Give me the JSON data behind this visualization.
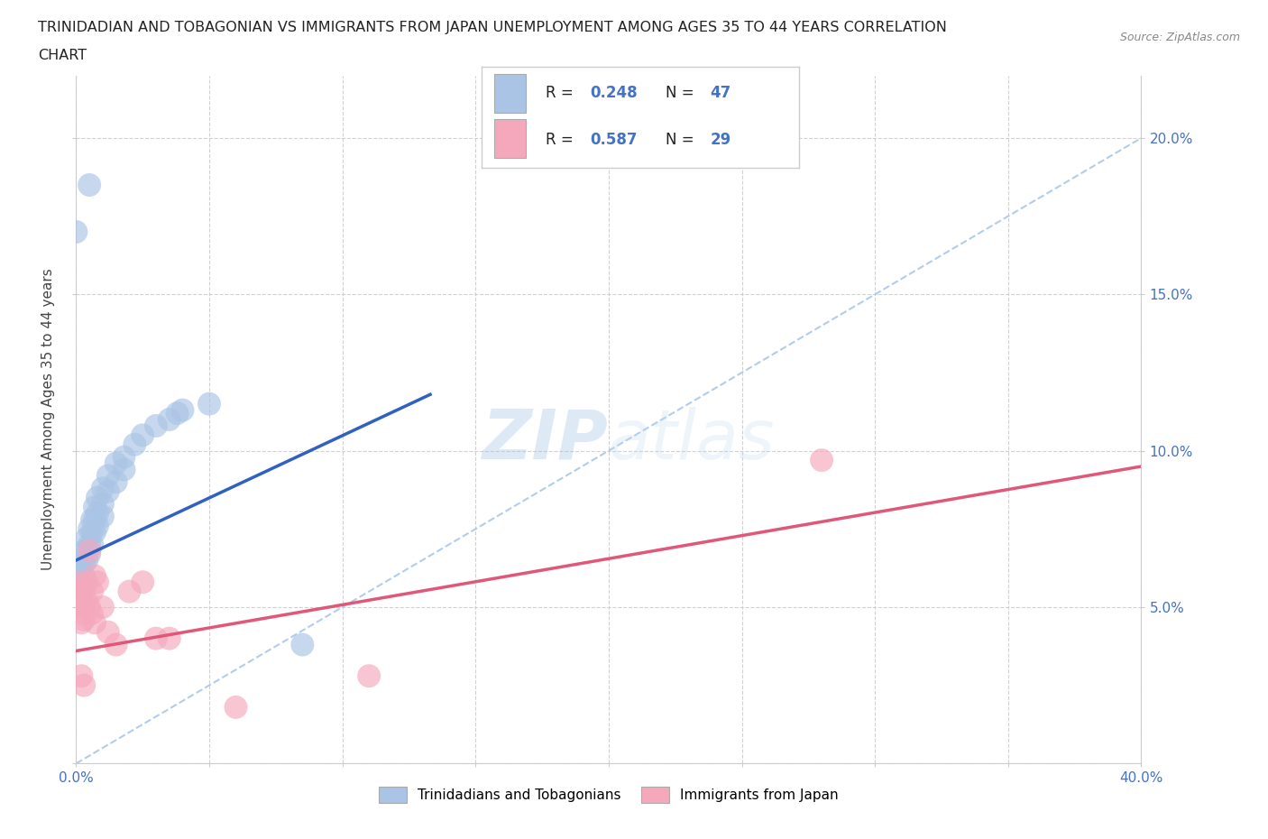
{
  "title_line1": "TRINIDADIAN AND TOBAGONIAN VS IMMIGRANTS FROM JAPAN UNEMPLOYMENT AMONG AGES 35 TO 44 YEARS CORRELATION",
  "title_line2": "CHART",
  "source_text": "Source: ZipAtlas.com",
  "ylabel": "Unemployment Among Ages 35 to 44 years",
  "xlim": [
    0.0,
    0.4
  ],
  "ylim": [
    0.0,
    0.22
  ],
  "xticks": [
    0.0,
    0.05,
    0.1,
    0.15,
    0.2,
    0.25,
    0.3,
    0.35,
    0.4
  ],
  "xticklabels": [
    "0.0%",
    "",
    "",
    "",
    "",
    "",
    "",
    "",
    "40.0%"
  ],
  "yticks": [
    0.05,
    0.1,
    0.15,
    0.2
  ],
  "yticklabels": [
    "5.0%",
    "10.0%",
    "15.0%",
    "20.0%"
  ],
  "grid_color": "#cccccc",
  "background_color": "#ffffff",
  "blue_R": 0.248,
  "blue_N": 47,
  "pink_R": 0.587,
  "pink_N": 29,
  "blue_color": "#aac4e6",
  "pink_color": "#f5a8bc",
  "blue_line_color": "#3060c0",
  "pink_line_color": "#e05878",
  "tick_color": "#4472c4",
  "watermark_color": "#c8ddf0",
  "blue_dots": [
    [
      0.001,
      0.06
    ],
    [
      0.001,
      0.057
    ],
    [
      0.001,
      0.054
    ],
    [
      0.001,
      0.052
    ],
    [
      0.002,
      0.065
    ],
    [
      0.002,
      0.062
    ],
    [
      0.002,
      0.058
    ],
    [
      0.002,
      0.055
    ],
    [
      0.003,
      0.068
    ],
    [
      0.003,
      0.064
    ],
    [
      0.003,
      0.06
    ],
    [
      0.003,
      0.057
    ],
    [
      0.004,
      0.072
    ],
    [
      0.004,
      0.068
    ],
    [
      0.004,
      0.065
    ],
    [
      0.005,
      0.075
    ],
    [
      0.005,
      0.07
    ],
    [
      0.005,
      0.067
    ],
    [
      0.006,
      0.078
    ],
    [
      0.006,
      0.074
    ],
    [
      0.006,
      0.07
    ],
    [
      0.007,
      0.082
    ],
    [
      0.007,
      0.078
    ],
    [
      0.007,
      0.074
    ],
    [
      0.008,
      0.085
    ],
    [
      0.008,
      0.08
    ],
    [
      0.008,
      0.076
    ],
    [
      0.01,
      0.088
    ],
    [
      0.01,
      0.083
    ],
    [
      0.01,
      0.079
    ],
    [
      0.012,
      0.092
    ],
    [
      0.012,
      0.087
    ],
    [
      0.015,
      0.096
    ],
    [
      0.015,
      0.09
    ],
    [
      0.018,
      0.098
    ],
    [
      0.018,
      0.094
    ],
    [
      0.022,
      0.102
    ],
    [
      0.025,
      0.105
    ],
    [
      0.03,
      0.108
    ],
    [
      0.035,
      0.11
    ],
    [
      0.038,
      0.112
    ],
    [
      0.04,
      0.113
    ],
    [
      0.05,
      0.115
    ],
    [
      0.0,
      0.17
    ],
    [
      0.005,
      0.185
    ],
    [
      0.085,
      0.038
    ],
    [
      0.0,
      0.05
    ]
  ],
  "pink_dots": [
    [
      0.0,
      0.058
    ],
    [
      0.001,
      0.055
    ],
    [
      0.001,
      0.052
    ],
    [
      0.002,
      0.048
    ],
    [
      0.002,
      0.045
    ],
    [
      0.002,
      0.028
    ],
    [
      0.003,
      0.055
    ],
    [
      0.003,
      0.05
    ],
    [
      0.003,
      0.046
    ],
    [
      0.004,
      0.058
    ],
    [
      0.004,
      0.052
    ],
    [
      0.005,
      0.068
    ],
    [
      0.005,
      0.05
    ],
    [
      0.006,
      0.055
    ],
    [
      0.006,
      0.048
    ],
    [
      0.007,
      0.06
    ],
    [
      0.007,
      0.045
    ],
    [
      0.008,
      0.058
    ],
    [
      0.01,
      0.05
    ],
    [
      0.012,
      0.042
    ],
    [
      0.015,
      0.038
    ],
    [
      0.02,
      0.055
    ],
    [
      0.025,
      0.058
    ],
    [
      0.03,
      0.04
    ],
    [
      0.035,
      0.04
    ],
    [
      0.06,
      0.018
    ],
    [
      0.11,
      0.028
    ],
    [
      0.28,
      0.097
    ],
    [
      0.003,
      0.025
    ]
  ],
  "legend_label_blue": "Trinidadians and Tobagonians",
  "legend_label_pink": "Immigrants from Japan",
  "blue_line_x": [
    0.0,
    0.133
  ],
  "blue_line_y": [
    0.065,
    0.118
  ],
  "pink_line_x": [
    0.0,
    0.4
  ],
  "pink_line_y": [
    0.036,
    0.095
  ],
  "dash_line_x": [
    0.0,
    0.4
  ],
  "dash_line_y": [
    0.0,
    0.2
  ]
}
